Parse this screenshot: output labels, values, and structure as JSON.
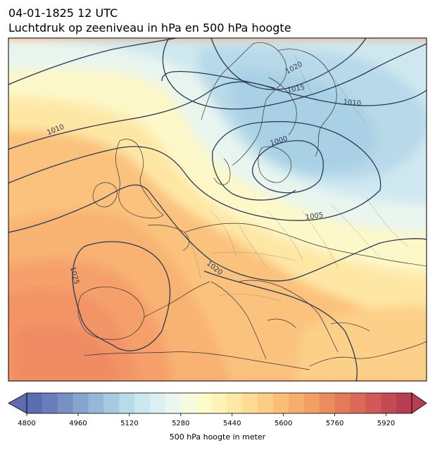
{
  "header": {
    "date_line": "04-01-1825 12 UTC",
    "subtitle_line": "Luchtdruk op zeeniveau in hPa en 500 hPa hoogte"
  },
  "map": {
    "field": "500 hPa geopotential height (filled)",
    "contour_field": "mean sea level pressure (lines)",
    "isobar_labels": [
      "1020",
      "1015",
      "1010",
      "1010",
      "1000",
      "1005",
      "1020",
      "1025"
    ],
    "isobar_color": "#2b3a55",
    "coast_color": "#333333"
  },
  "colorbar": {
    "label": "500 hPa hoogte in meter",
    "ticks": [
      "4800",
      "4960",
      "5120",
      "5280",
      "5440",
      "5600",
      "5760",
      "5920"
    ],
    "range": [
      4800,
      6000
    ],
    "step": 40,
    "colors": [
      "#5e6cb0",
      "#6a7dbb",
      "#7690c4",
      "#85a5cd",
      "#95b8d7",
      "#a6cbe1",
      "#b8dbea",
      "#cbe7f0",
      "#dcf0f3",
      "#ebf6ee",
      "#f6fbe0",
      "#fdfbc8",
      "#fef3b6",
      "#fee8a3",
      "#fddb92",
      "#fccd84",
      "#fabe77",
      "#f7ae6c",
      "#f39e63",
      "#ec8b5d",
      "#e57a59",
      "#dc6a58",
      "#d15a57",
      "#c44a55",
      "#b73d53"
    ]
  }
}
